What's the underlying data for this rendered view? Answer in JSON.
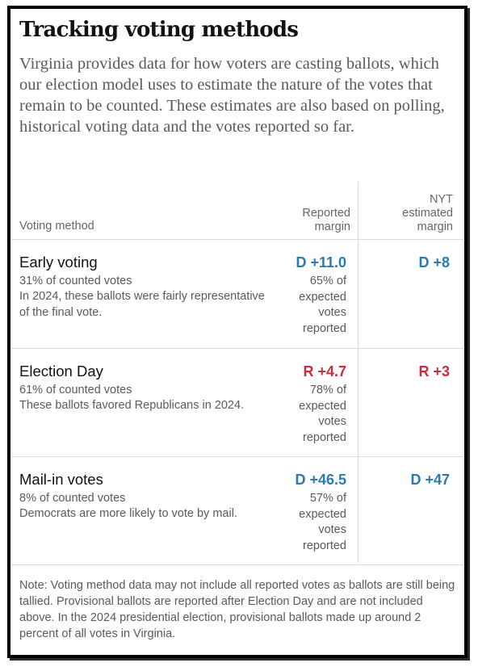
{
  "header": {
    "title": "Tracking voting methods",
    "intro": "Virginia provides data for how voters are casting ballots, which our election model uses to estimate the nature of the votes that remain to be counted. These estimates are also based on polling, historical voting data and the votes reported so far."
  },
  "table": {
    "columns": {
      "method": "Voting method",
      "reported": [
        "Reported",
        "margin"
      ],
      "estimated": [
        "NYT",
        "estimated",
        "margin"
      ]
    },
    "rows": [
      {
        "method": "Early voting",
        "share": "31% of counted votes",
        "note": "In 2024, these ballots were fairly representative of the final vote.",
        "reported_margin": "D +11.0",
        "reported_pct": [
          "65% of",
          "expected",
          "votes",
          "reported"
        ],
        "estimated_margin": "D +8",
        "party": "dem"
      },
      {
        "method": "Election Day",
        "share": "61% of counted votes",
        "note": "These ballots favored Republicans in 2024.",
        "reported_margin": "R +4.7",
        "reported_pct": [
          "78% of",
          "expected",
          "votes",
          "reported"
        ],
        "estimated_margin": "R +3",
        "party": "rep"
      },
      {
        "method": "Mail-in votes",
        "share": "8% of counted votes",
        "note": "Democrats are more likely to vote by mail.",
        "reported_margin": "D +46.5",
        "reported_pct": [
          "57% of",
          "expected",
          "votes",
          "reported"
        ],
        "estimated_margin": "D +47",
        "party": "dem"
      }
    ]
  },
  "footer": {
    "note": "Note: Voting method data may not include all reported votes as ballots are still being tallied. Provisional ballots are reported after Election Day and are not included above. In the 2024 presidential election, provisional ballots made up around 2 percent of all votes in Virginia."
  },
  "colors": {
    "democrat": "#2a7bb0",
    "republican": "#c5303d"
  }
}
